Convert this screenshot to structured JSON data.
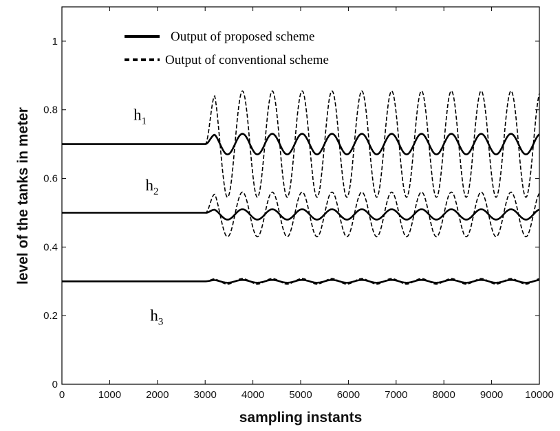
{
  "chart_data": {
    "type": "line",
    "xlabel": "sampling instants",
    "ylabel": "level of the tanks in meter",
    "xlim": [
      0,
      10000
    ],
    "ylim": [
      0,
      1.1
    ],
    "xticks": [
      0,
      1000,
      2000,
      3000,
      4000,
      5000,
      6000,
      7000,
      8000,
      9000,
      10000
    ],
    "yticks": [
      0,
      0.2,
      0.4,
      0.6,
      0.8,
      1
    ],
    "grid": false,
    "legend_position": "top-left",
    "legend": [
      {
        "label": "Output of proposed scheme",
        "style": "solid"
      },
      {
        "label": "Output of conventional scheme",
        "style": "dashed"
      }
    ],
    "annotations": [
      {
        "base": "h",
        "sub": "1",
        "x": 1500,
        "y": 0.77
      },
      {
        "base": "h",
        "sub": "2",
        "x": 1750,
        "y": 0.565
      },
      {
        "base": "h",
        "sub": "3",
        "x": 1850,
        "y": 0.185
      }
    ],
    "disturbance_start": 3000,
    "oscillation_period": 625,
    "series": [
      {
        "tank": "h1",
        "scheme": "proposed",
        "style": "solid",
        "steady": 0.7,
        "center": 0.7,
        "amplitude": 0.03
      },
      {
        "tank": "h1",
        "scheme": "conventional",
        "style": "dashed",
        "steady": 0.7,
        "center": 0.7,
        "amplitude": 0.155
      },
      {
        "tank": "h2",
        "scheme": "proposed",
        "style": "solid",
        "steady": 0.5,
        "center": 0.495,
        "amplitude": 0.015
      },
      {
        "tank": "h2",
        "scheme": "conventional",
        "style": "dashed",
        "steady": 0.5,
        "center": 0.495,
        "amplitude": 0.065
      },
      {
        "tank": "h3",
        "scheme": "proposed",
        "style": "solid",
        "steady": 0.3,
        "center": 0.3,
        "amplitude": 0.004
      },
      {
        "tank": "h3",
        "scheme": "conventional",
        "style": "dashed",
        "steady": 0.3,
        "center": 0.3,
        "amplitude": 0.008
      }
    ]
  }
}
